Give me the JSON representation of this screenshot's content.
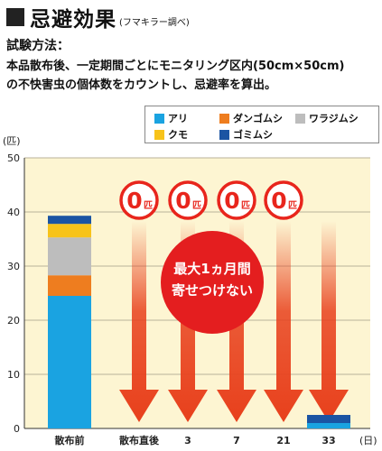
{
  "header": {
    "title": "忌避効果",
    "note": "(フマキラー調べ)"
  },
  "method": {
    "heading": "試験方法：",
    "line1": "本品散布後、一定期間ごとにモニタリング区内(50cm×50cm)",
    "line2": "の不快害虫の個体数をカウントし、忌避率を算出。"
  },
  "legend": [
    {
      "name": "アリ",
      "color": "#1aa3e1"
    },
    {
      "name": "ダンゴムシ",
      "color": "#ee7d1f"
    },
    {
      "name": "ワラジムシ",
      "color": "#bdbdbd"
    },
    {
      "name": "クモ",
      "color": "#f7c31a"
    },
    {
      "name": "ゴミムシ",
      "color": "#1b54a3"
    }
  ],
  "chart_data": {
    "type": "bar",
    "stacked": true,
    "ylabel": "(匹)",
    "xlabel": "(日)",
    "ylim": [
      0,
      50
    ],
    "yticks": [
      0,
      10,
      20,
      30,
      40,
      50
    ],
    "categories": [
      "散布前",
      "散布直後",
      "3",
      "7",
      "21",
      "33"
    ],
    "series": [
      {
        "name": "アリ",
        "color": "#1aa3e1",
        "values": [
          24.5,
          0,
          0,
          0,
          0,
          1
        ]
      },
      {
        "name": "ダンゴムシ",
        "color": "#ee7d1f",
        "values": [
          3.8,
          0,
          0,
          0,
          0,
          0
        ]
      },
      {
        "name": "ワラジムシ",
        "color": "#bdbdbd",
        "values": [
          7,
          0,
          0,
          0,
          0,
          0
        ]
      },
      {
        "name": "クモ",
        "color": "#f7c31a",
        "values": [
          2.5,
          0,
          0,
          0,
          0,
          0
        ]
      },
      {
        "name": "ゴミムシ",
        "color": "#1b54a3",
        "values": [
          1.5,
          0,
          0,
          0,
          0,
          1.5
        ]
      }
    ],
    "zero_badges": [
      {
        "category": "散布直後",
        "num": "0",
        "unit": "匹"
      },
      {
        "category": "3",
        "num": "0",
        "unit": "匹"
      },
      {
        "category": "7",
        "num": "0",
        "unit": "匹"
      },
      {
        "category": "21",
        "num": "0",
        "unit": "匹"
      }
    ],
    "callout": {
      "line1": "最大1ヵ月間",
      "line2": "寄せつけない"
    },
    "colors": {
      "plot_bg": "#fdf5d2",
      "arrow": "#e8401c",
      "badge": "#e8251c"
    }
  }
}
